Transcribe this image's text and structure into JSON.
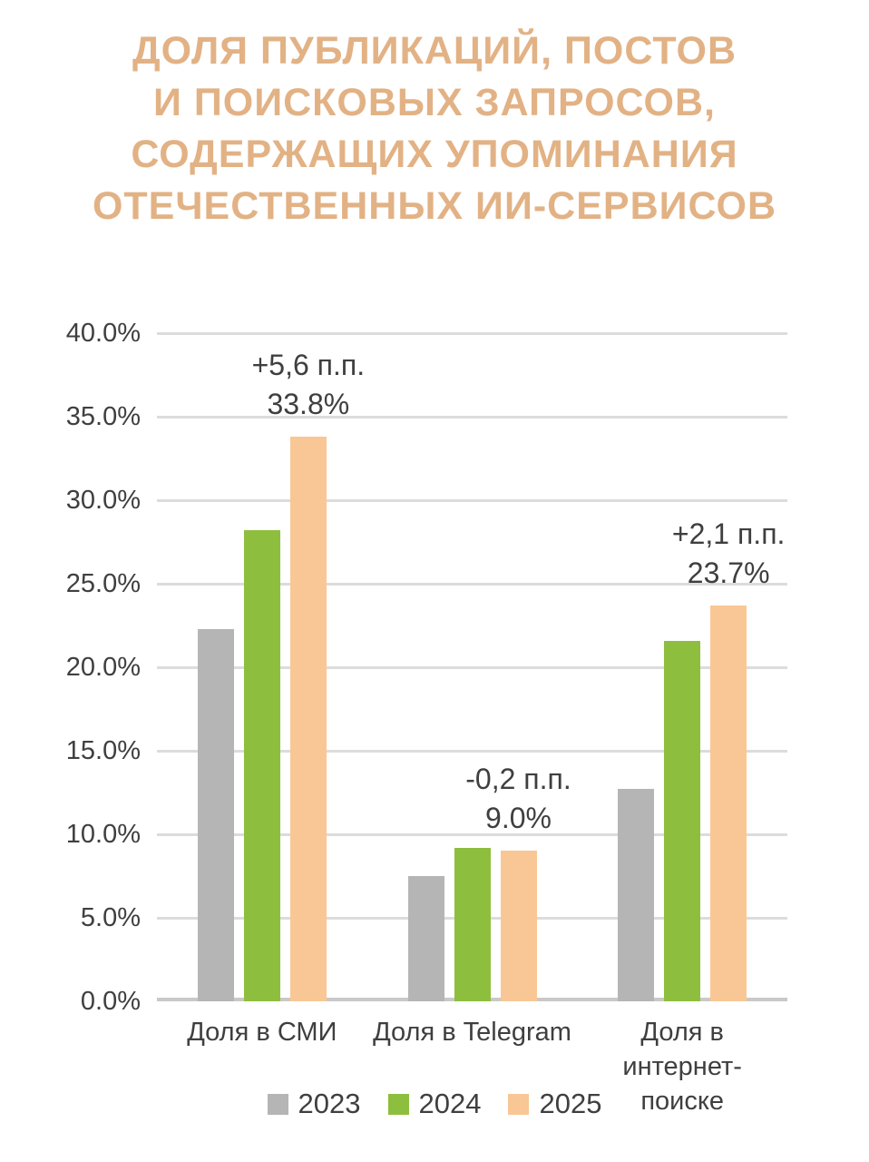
{
  "title": {
    "text": "ДОЛЯ ПУБЛИКАЦИЙ, ПОСТОВ И ПОИСКОВЫХ ЗАПРОСОВ, СОДЕРЖАЩИХ УПОМИНАНИЯ ОТЕЧЕСТВЕННЫХ ИИ-СЕРВИСОВ",
    "lines": [
      "ДОЛЯ ПУБЛИКАЦИЙ, ПОСТОВ",
      "И ПОИСКОВЫХ ЗАПРОСОВ,",
      "СОДЕРЖАЩИХ УПОМИНАНИЯ",
      "ОТЕЧЕСТВЕННЫХ ИИ-СЕРВИСОВ"
    ],
    "color": "#E2B285"
  },
  "chart_data": {
    "type": "bar",
    "categories": [
      "Доля в СМИ",
      "Доля в Telegram",
      "Доля в интернет-поиске"
    ],
    "xtick_display": [
      "Доля в СМИ",
      "Доля в Telegram",
      "Доля в\nинтернет-\nпоиске"
    ],
    "series": [
      {
        "name": "2023",
        "color": "#B5B5B5",
        "values": [
          22.3,
          7.5,
          12.7
        ]
      },
      {
        "name": "2024",
        "color": "#8EBE3E",
        "values": [
          28.2,
          9.2,
          21.6
        ]
      },
      {
        "name": "2025",
        "color": "#F9C795",
        "values": [
          33.8,
          9.0,
          23.7
        ]
      }
    ],
    "annotations": [
      {
        "category": "Доля в СМИ",
        "series": "2025",
        "lines": [
          "+5,6 п.п.",
          "33.8%"
        ]
      },
      {
        "category": "Доля в Telegram",
        "series": "2025",
        "lines": [
          "-0,2 п.п.",
          "9.0%"
        ]
      },
      {
        "category": "Доля в интернет-поиске",
        "series": "2025",
        "lines": [
          "+2,1 п.п.",
          "23.7%"
        ]
      }
    ],
    "xlabel": "",
    "ylabel": "",
    "ylim": [
      0,
      40
    ],
    "ytick_step": 5,
    "ytick_labels": [
      "0.0%",
      "5.0%",
      "10.0%",
      "15.0%",
      "20.0%",
      "25.0%",
      "30.0%",
      "35.0%",
      "40.0%"
    ],
    "grid": true,
    "legend_position": "bottom",
    "colors": {
      "grid": "#DCDCDC",
      "axis": "#C9C9C9",
      "text": "#3F3F3F"
    }
  }
}
